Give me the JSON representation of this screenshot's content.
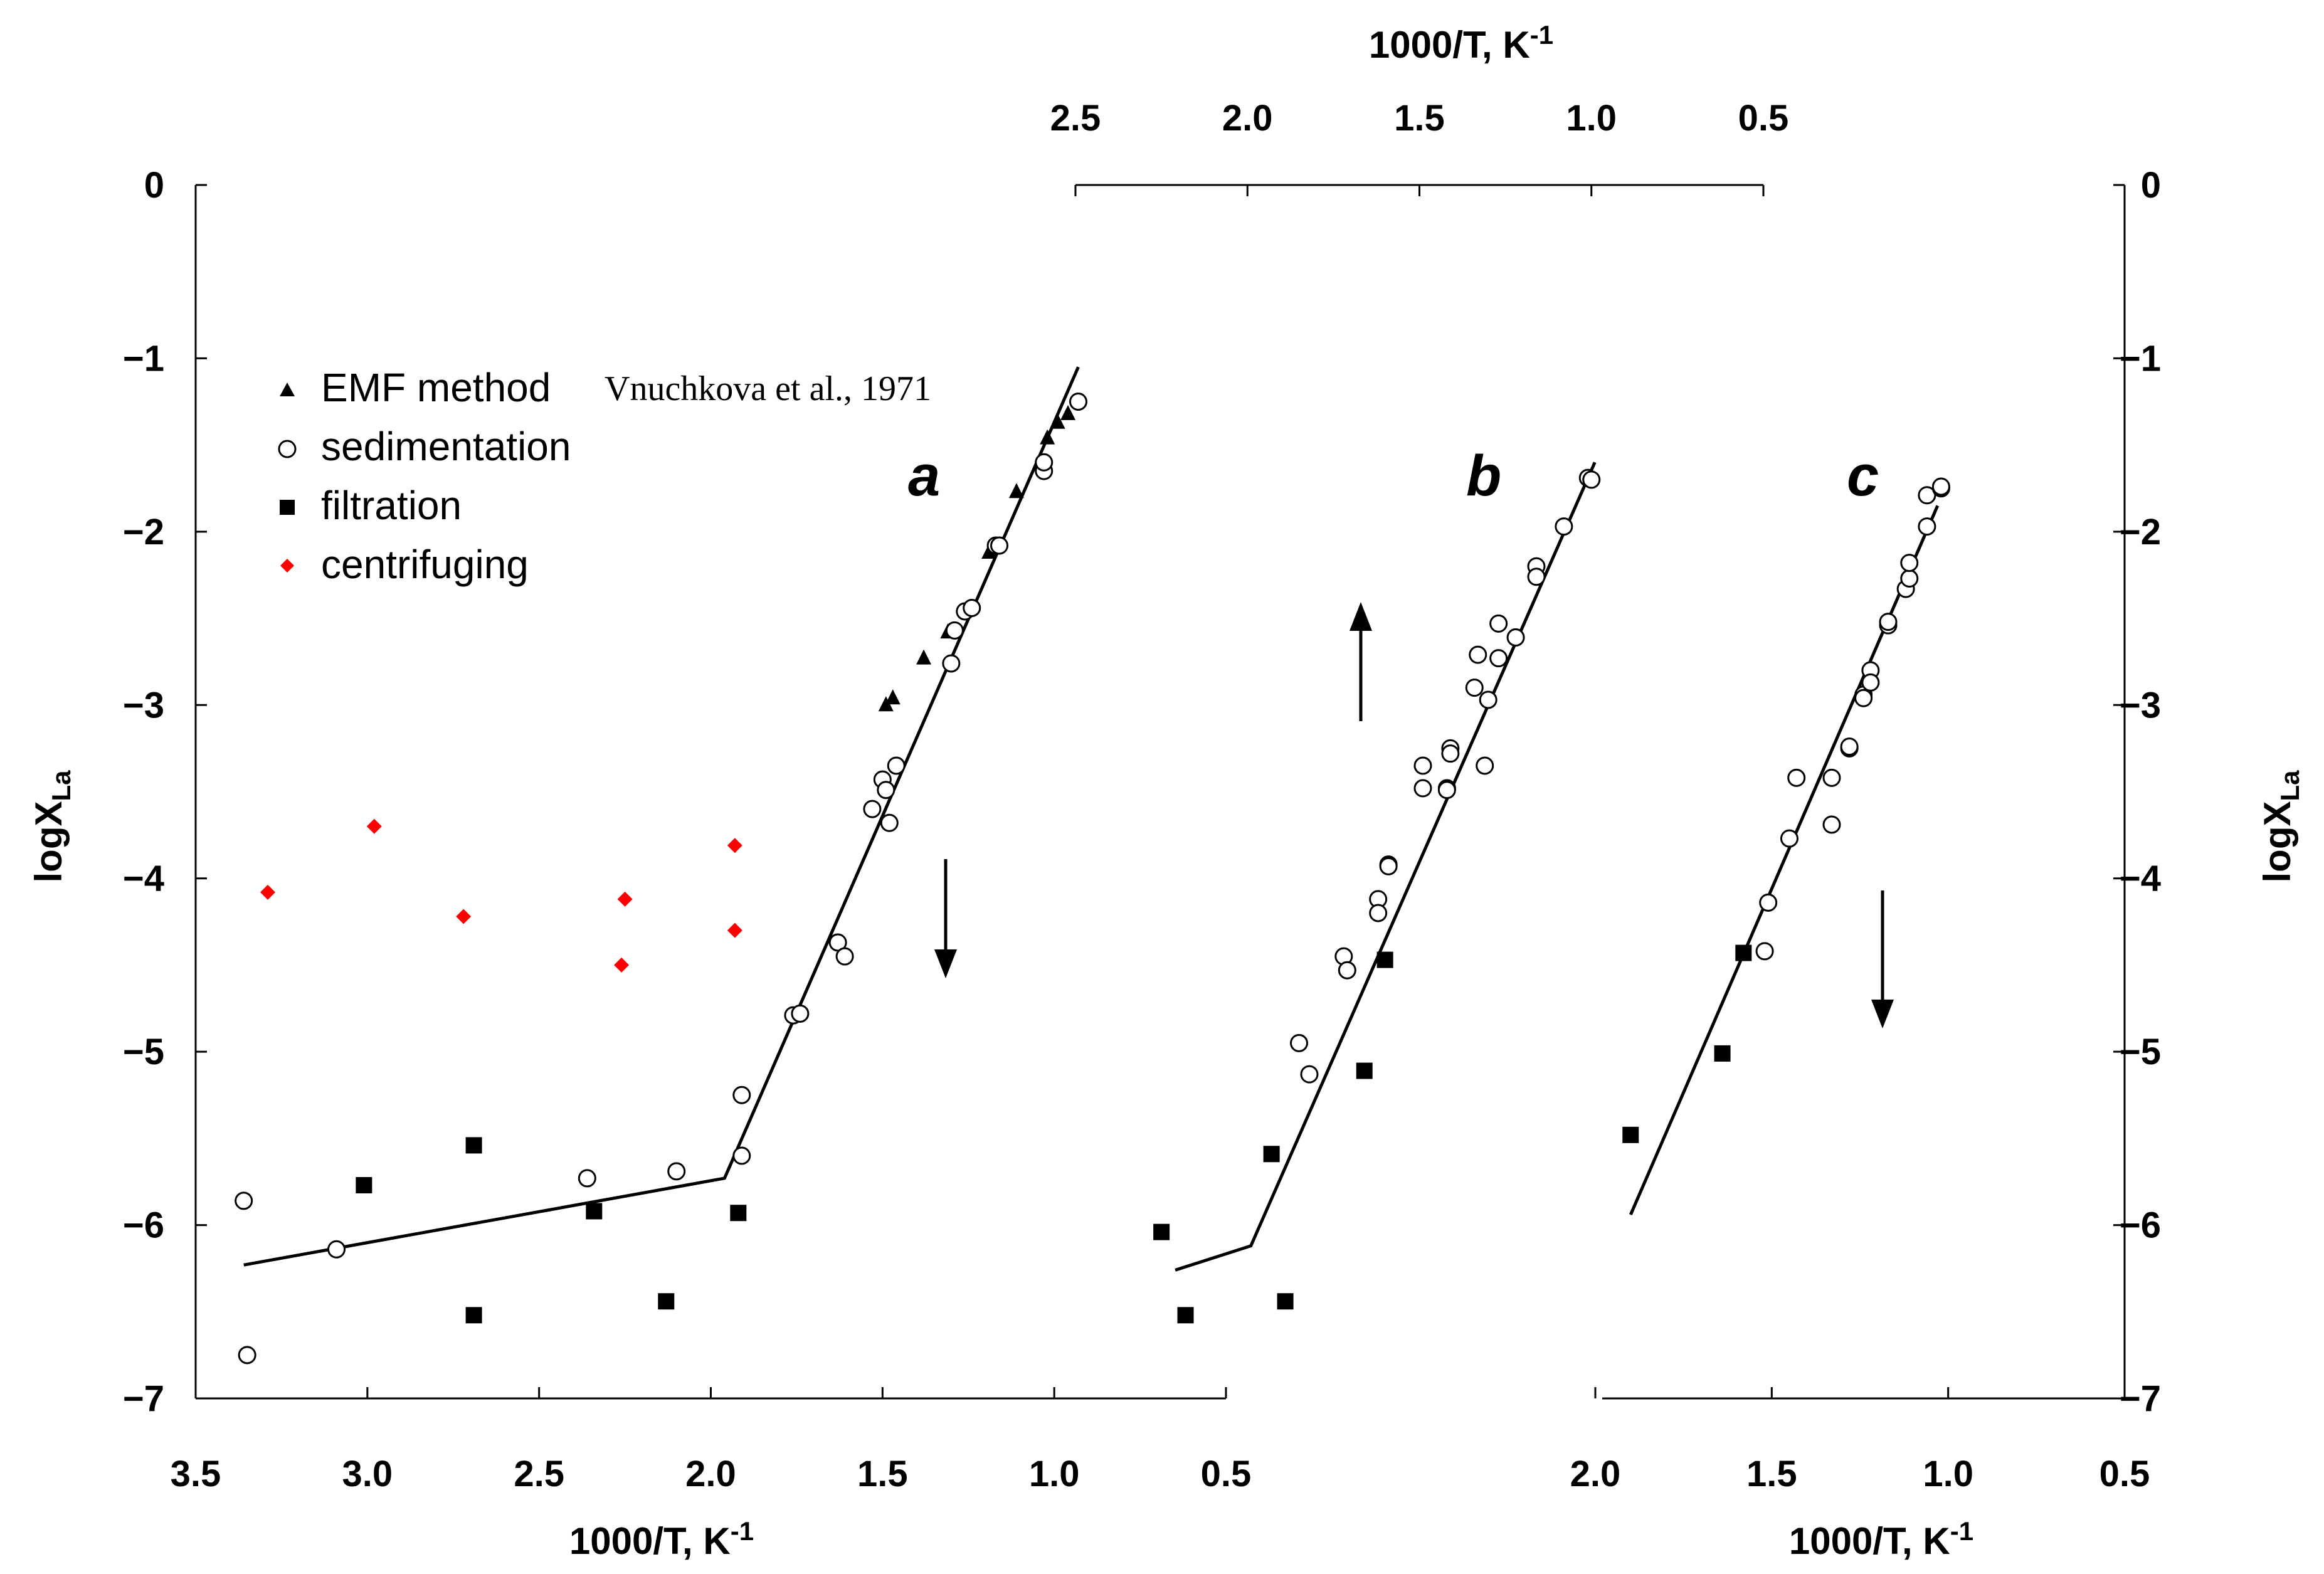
{
  "chart_data": {
    "type": "scatter",
    "ylabel": "logX",
    "ylabel_sub": "La",
    "ylim": [
      -7,
      0
    ],
    "y_ticks": [
      "0",
      "−1",
      "−2",
      "−3",
      "−4",
      "−5",
      "−6",
      "−7"
    ],
    "legend": [
      {
        "name": "EMF method",
        "marker": "triangle",
        "color": "#000000",
        "ref": "Vnuchkova et al., 1971"
      },
      {
        "name": "sedimentation",
        "marker": "open-circle",
        "color": "#000000"
      },
      {
        "name": "filtration",
        "marker": "square",
        "color": "#000000"
      },
      {
        "name": "centrifuging",
        "marker": "diamond",
        "color": "#ff0000"
      }
    ],
    "panels": [
      {
        "label": "a",
        "xlabel": "1000/T, K",
        "xlabel_sup": "-1",
        "xlim": [
          3.5,
          0.5
        ],
        "x_ticks": [
          "3.5",
          "3.0",
          "2.5",
          "2.0",
          "1.5",
          "1.0",
          "0.5"
        ],
        "arrow": "down",
        "fit_line": [
          [
            3.36,
            -6.23
          ],
          [
            1.96,
            -5.73
          ],
          [
            0.93,
            -1.05
          ]
        ],
        "series": [
          {
            "name": "EMF method",
            "points": [
              [
                1.47,
                -2.96
              ],
              [
                1.49,
                -3.0
              ],
              [
                1.38,
                -2.73
              ],
              [
                1.31,
                -2.58
              ],
              [
                1.19,
                -2.12
              ],
              [
                1.11,
                -1.77
              ],
              [
                1.02,
                -1.46
              ],
              [
                0.99,
                -1.37
              ],
              [
                0.96,
                -1.32
              ]
            ]
          },
          {
            "name": "sedimentation",
            "points": [
              [
                3.36,
                -5.86
              ],
              [
                3.35,
                -6.75
              ],
              [
                3.09,
                -6.14
              ],
              [
                2.36,
                -5.73
              ],
              [
                2.1,
                -5.69
              ],
              [
                1.91,
                -5.25
              ],
              [
                1.91,
                -5.6
              ],
              [
                1.76,
                -4.79
              ],
              [
                1.74,
                -4.78
              ],
              [
                1.63,
                -4.37
              ],
              [
                1.61,
                -4.45
              ],
              [
                1.53,
                -3.6
              ],
              [
                1.5,
                -3.43
              ],
              [
                1.49,
                -3.49
              ],
              [
                1.48,
                -3.68
              ],
              [
                1.46,
                -3.35
              ],
              [
                1.3,
                -2.76
              ],
              [
                1.29,
                -2.57
              ],
              [
                1.26,
                -2.46
              ],
              [
                1.24,
                -2.44
              ],
              [
                1.17,
                -2.08
              ],
              [
                1.16,
                -2.08
              ],
              [
                1.03,
                -1.65
              ],
              [
                1.03,
                -1.6
              ],
              [
                0.93,
                -1.25
              ]
            ]
          },
          {
            "name": "filtration",
            "points": [
              [
                3.01,
                -5.77
              ],
              [
                2.69,
                -5.54
              ],
              [
                2.34,
                -5.92
              ],
              [
                1.92,
                -5.93
              ],
              [
                2.69,
                -6.52
              ],
              [
                2.13,
                -6.44
              ]
            ]
          },
          {
            "name": "centrifuging",
            "points": [
              [
                3.29,
                -4.08
              ],
              [
                2.98,
                -3.7
              ],
              [
                2.72,
                -4.22
              ],
              [
                2.25,
                -4.12
              ],
              [
                2.26,
                -4.5
              ],
              [
                1.93,
                -3.81
              ],
              [
                1.93,
                -4.3
              ]
            ]
          }
        ]
      },
      {
        "label": "b",
        "xlabel": "1000/T, K",
        "xlabel_sup": "-1",
        "xlim": [
          2.5,
          0.5
        ],
        "x_ticks": [
          "2.5",
          "2.0",
          "1.5",
          "1.0",
          "0.5"
        ],
        "arrow": "up",
        "fit_line": [
          [
            2.21,
            -6.26
          ],
          [
            1.99,
            -6.12
          ],
          [
            0.99,
            -1.6
          ]
        ],
        "series": [
          {
            "name": "sedimentation",
            "points": [
              [
                1.85,
                -4.95
              ],
              [
                1.82,
                -5.13
              ],
              [
                1.72,
                -4.45
              ],
              [
                1.71,
                -4.53
              ],
              [
                1.62,
                -4.12
              ],
              [
                1.62,
                -4.2
              ],
              [
                1.59,
                -3.92
              ],
              [
                1.59,
                -3.93
              ],
              [
                1.49,
                -3.35
              ],
              [
                1.49,
                -3.48
              ],
              [
                1.42,
                -3.48
              ],
              [
                1.42,
                -3.49
              ],
              [
                1.41,
                -3.25
              ],
              [
                1.41,
                -3.28
              ],
              [
                1.34,
                -2.9
              ],
              [
                1.33,
                -2.71
              ],
              [
                1.31,
                -3.35
              ],
              [
                1.3,
                -2.97
              ],
              [
                1.27,
                -2.53
              ],
              [
                1.27,
                -2.73
              ],
              [
                1.22,
                -2.61
              ],
              [
                1.16,
                -2.2
              ],
              [
                1.16,
                -2.26
              ],
              [
                1.08,
                -1.97
              ],
              [
                1.01,
                -1.69
              ],
              [
                1.0,
                -1.7
              ]
            ]
          },
          {
            "name": "filtration",
            "points": [
              [
                2.25,
                -6.04
              ],
              [
                2.18,
                -6.52
              ],
              [
                1.93,
                -5.59
              ],
              [
                1.89,
                -6.44
              ],
              [
                1.66,
                -5.11
              ],
              [
                1.6,
                -4.47
              ]
            ]
          }
        ]
      },
      {
        "label": "c",
        "xlabel": "1000/T, K",
        "xlabel_sup": "-1",
        "xlim": [
          2.0,
          0.5
        ],
        "x_ticks": [
          "2.0",
          "1.5",
          "1.0",
          "0.5"
        ],
        "arrow": "down",
        "fit_line": [
          [
            1.9,
            -5.94
          ],
          [
            1.03,
            -1.85
          ]
        ],
        "series": [
          {
            "name": "sedimentation",
            "points": [
              [
                1.52,
                -4.42
              ],
              [
                1.51,
                -4.14
              ],
              [
                1.45,
                -3.77
              ],
              [
                1.43,
                -3.42
              ],
              [
                1.33,
                -3.42
              ],
              [
                1.33,
                -3.69
              ],
              [
                1.28,
                -3.25
              ],
              [
                1.28,
                -3.24
              ],
              [
                1.24,
                -2.94
              ],
              [
                1.24,
                -2.96
              ],
              [
                1.22,
                -2.8
              ],
              [
                1.22,
                -2.87
              ],
              [
                1.17,
                -2.54
              ],
              [
                1.17,
                -2.52
              ],
              [
                1.12,
                -2.33
              ],
              [
                1.11,
                -2.27
              ],
              [
                1.11,
                -2.18
              ],
              [
                1.06,
                -1.97
              ],
              [
                1.06,
                -1.79
              ],
              [
                1.02,
                -1.75
              ],
              [
                1.02,
                -1.74
              ]
            ]
          },
          {
            "name": "filtration",
            "points": [
              [
                1.9,
                -5.48
              ],
              [
                1.64,
                -5.01
              ],
              [
                1.58,
                -4.43
              ]
            ]
          }
        ]
      }
    ]
  }
}
